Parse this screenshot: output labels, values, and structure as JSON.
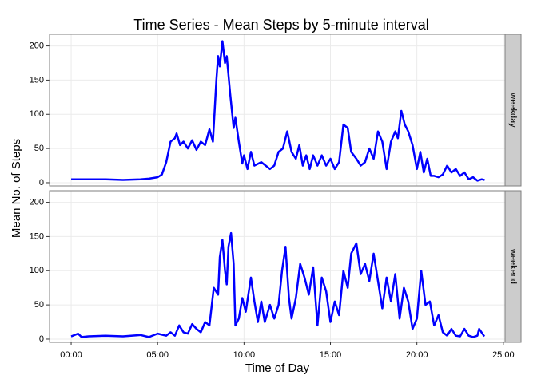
{
  "chart_data": {
    "type": "line",
    "title": "Time Series - Mean Steps by 5-minute interval",
    "xlabel": "Time of Day",
    "ylabel": "Mean No. of Steps",
    "color": "#0000ff",
    "grid": true,
    "xlim": [
      -1.25,
      25.1
    ],
    "ylim": [
      -4.7,
      217
    ],
    "xticks": [
      {
        "value": 0,
        "label": "00:00"
      },
      {
        "value": 5,
        "label": "05:00"
      },
      {
        "value": 10,
        "label": "10:00"
      },
      {
        "value": 15,
        "label": "15:00"
      },
      {
        "value": 20,
        "label": "20:00"
      },
      {
        "value": 25,
        "label": "25:00"
      }
    ],
    "yticks": [
      0,
      50,
      100,
      150,
      200
    ],
    "panels": [
      {
        "label": "weekday",
        "x": [
          0,
          1,
          2,
          3,
          4,
          4.5,
          5,
          5.25,
          5.5,
          5.75,
          6,
          6.1,
          6.3,
          6.5,
          6.75,
          7,
          7.25,
          7.5,
          7.75,
          8,
          8.2,
          8.4,
          8.5,
          8.6,
          8.75,
          8.9,
          9,
          9.2,
          9.4,
          9.5,
          9.7,
          9.9,
          10,
          10.2,
          10.4,
          10.6,
          11,
          11.5,
          11.75,
          12,
          12.25,
          12.5,
          12.75,
          13,
          13.2,
          13.4,
          13.6,
          13.8,
          14,
          14.25,
          14.5,
          14.75,
          15,
          15.25,
          15.5,
          15.75,
          16,
          16.2,
          16.5,
          16.75,
          17,
          17.25,
          17.5,
          17.75,
          18,
          18.25,
          18.5,
          18.75,
          18.9,
          19.1,
          19.3,
          19.5,
          19.75,
          20,
          20.2,
          20.4,
          20.6,
          20.8,
          21,
          21.25,
          21.5,
          21.75,
          22,
          22.25,
          22.5,
          22.75,
          23,
          23.25,
          23.5,
          23.75,
          23.92
        ],
        "values": [
          5,
          5,
          5,
          4,
          5,
          6,
          8,
          12,
          30,
          60,
          65,
          72,
          55,
          60,
          50,
          62,
          48,
          60,
          55,
          78,
          60,
          150,
          185,
          170,
          207,
          175,
          185,
          130,
          80,
          95,
          60,
          28,
          40,
          20,
          45,
          25,
          30,
          20,
          25,
          45,
          50,
          75,
          45,
          35,
          55,
          25,
          40,
          20,
          40,
          25,
          40,
          25,
          35,
          20,
          30,
          85,
          80,
          45,
          35,
          25,
          30,
          50,
          35,
          75,
          60,
          20,
          60,
          75,
          65,
          105,
          85,
          75,
          55,
          20,
          45,
          15,
          35,
          10,
          10,
          8,
          12,
          25,
          15,
          20,
          10,
          15,
          5,
          8,
          3,
          5,
          4
        ]
      },
      {
        "label": "weekend",
        "x": [
          0,
          0.4,
          0.6,
          1,
          2,
          3,
          4,
          4.5,
          5,
          5.5,
          5.75,
          6,
          6.25,
          6.5,
          6.75,
          7,
          7.25,
          7.5,
          7.75,
          8,
          8.25,
          8.5,
          8.6,
          8.75,
          8.9,
          9,
          9.1,
          9.25,
          9.4,
          9.5,
          9.7,
          9.9,
          10.1,
          10.4,
          10.6,
          10.8,
          11,
          11.2,
          11.5,
          11.75,
          12,
          12.2,
          12.4,
          12.6,
          12.75,
          13,
          13.25,
          13.5,
          13.75,
          14,
          14.25,
          14.5,
          14.75,
          15,
          15.25,
          15.5,
          15.75,
          16,
          16.2,
          16.5,
          16.75,
          17,
          17.25,
          17.5,
          17.75,
          18,
          18.25,
          18.5,
          18.75,
          19,
          19.25,
          19.5,
          19.75,
          20,
          20.25,
          20.5,
          20.75,
          21,
          21.25,
          21.5,
          21.75,
          22,
          22.25,
          22.5,
          22.75,
          23,
          23.25,
          23.5,
          23.6,
          23.9
        ],
        "values": [
          4,
          8,
          3,
          4,
          5,
          4,
          6,
          3,
          8,
          5,
          10,
          5,
          20,
          10,
          8,
          22,
          15,
          10,
          25,
          20,
          75,
          65,
          120,
          145,
          100,
          80,
          135,
          155,
          110,
          20,
          30,
          60,
          40,
          90,
          55,
          25,
          55,
          25,
          50,
          30,
          50,
          100,
          135,
          60,
          30,
          60,
          110,
          90,
          65,
          105,
          20,
          90,
          70,
          25,
          55,
          35,
          100,
          75,
          125,
          140,
          95,
          110,
          85,
          125,
          85,
          45,
          90,
          55,
          95,
          30,
          75,
          55,
          15,
          30,
          100,
          50,
          55,
          20,
          35,
          10,
          5,
          15,
          5,
          4,
          15,
          5,
          3,
          5,
          15,
          4
        ]
      }
    ]
  }
}
